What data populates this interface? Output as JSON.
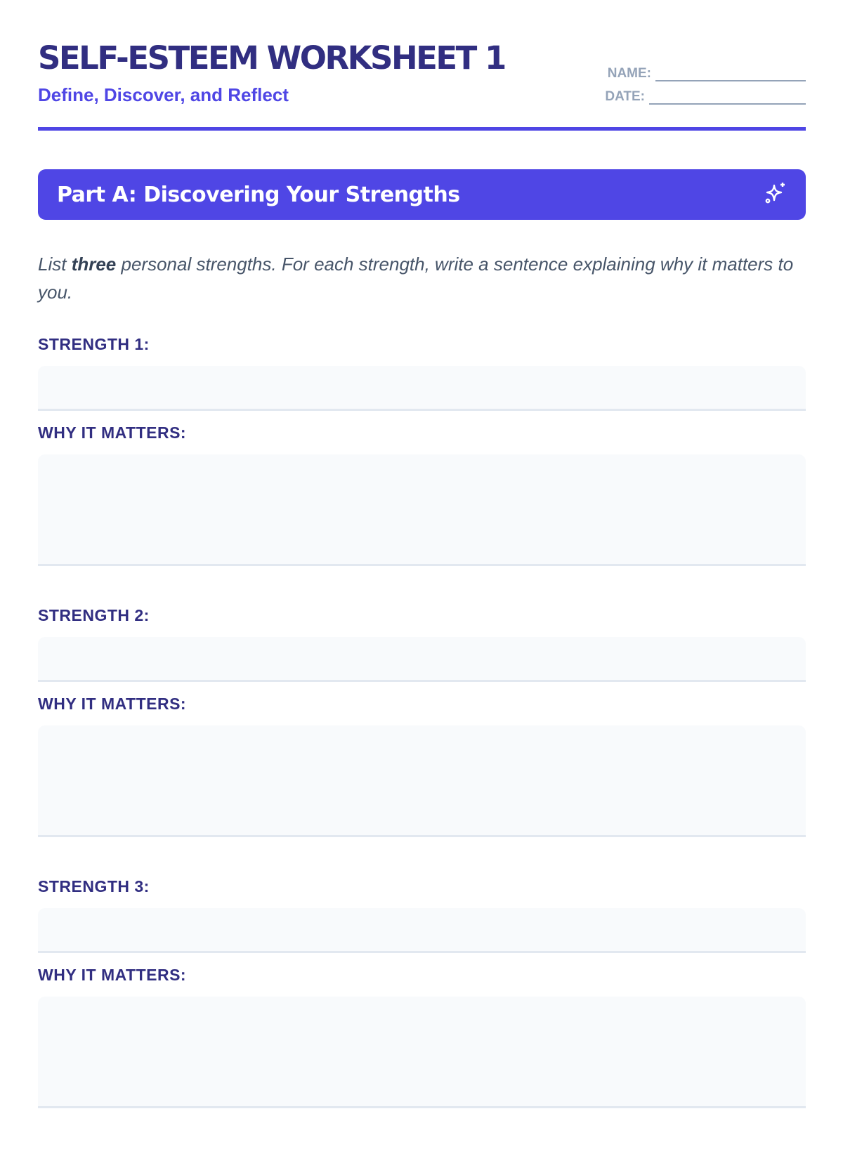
{
  "header": {
    "title": "SELF-ESTEEM WORKSHEET 1",
    "subtitle": "Define, Discover, and Reflect",
    "name_label": "NAME:",
    "date_label": "DATE:"
  },
  "colors": {
    "accent": "#4f46e5",
    "heading": "#312e81",
    "muted": "#94a3b8",
    "field_bg": "#f8fafc"
  },
  "section": {
    "title": "Part A: Discovering Your Strengths",
    "icon": "sparkles-icon",
    "instruction_pre": "List ",
    "instruction_bold": "three",
    "instruction_post": " personal strengths. For each strength, write a sentence explaining why it matters to you."
  },
  "strengths": [
    {
      "label": "STRENGTH 1:",
      "why_label": "WHY IT MATTERS:"
    },
    {
      "label": "STRENGTH 2:",
      "why_label": "WHY IT MATTERS:"
    },
    {
      "label": "STRENGTH 3:",
      "why_label": "WHY IT MATTERS:"
    }
  ]
}
